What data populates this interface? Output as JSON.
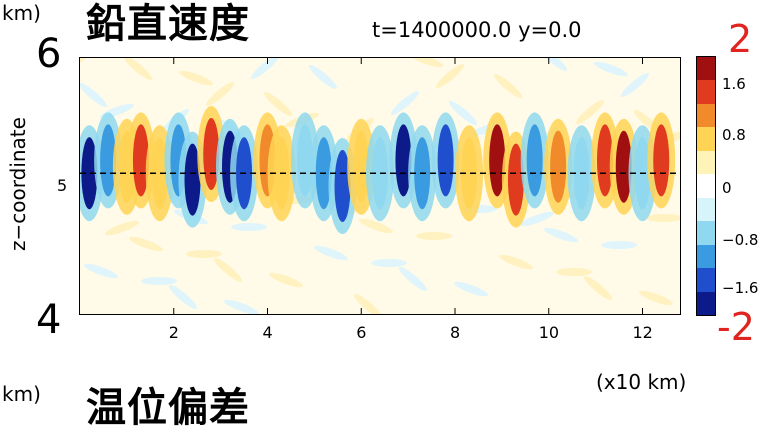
{
  "header": {
    "unit_top_left": "km)",
    "title": "鉛直速度",
    "info": "t=1400000.0  y=0.0"
  },
  "axes": {
    "y_top_big": "6",
    "y_bottom_big": "4",
    "y_mid": "5",
    "ylabel": "z−coordinate",
    "x_ticks": [
      "2",
      "4",
      "6",
      "8",
      "10",
      "12"
    ],
    "x_unit": "(x10 km)"
  },
  "colorbar": {
    "top_big": "2",
    "bottom_big": "-2",
    "labels": [
      "1.6",
      "0.8",
      "0",
      "−0.8",
      "−1.6"
    ],
    "colors": [
      "#a01010",
      "#e03a1f",
      "#f08a2a",
      "#ffd455",
      "#fff4b8",
      "#ffffff",
      "#d6f4fa",
      "#8fd8ef",
      "#3a9be0",
      "#1f4fcc",
      "#0c1a8a"
    ]
  },
  "bottom_panel": {
    "unit": "km)",
    "title": "温位偏差"
  },
  "chart_data": {
    "type": "heatmap",
    "title": "鉛直速度",
    "subtitle": "t=1400000.0  y=0.0",
    "xlabel": "(x10 km)",
    "ylabel": "z−coordinate",
    "xlim": [
      0,
      12.8
    ],
    "ylim": [
      4,
      6
    ],
    "x_ticks": [
      2,
      4,
      6,
      8,
      10,
      12
    ],
    "y_ticks": [
      4,
      5,
      6
    ],
    "colorbar_range": [
      -2,
      2
    ],
    "colorbar_ticks": [
      1.6,
      0.8,
      0,
      -0.8,
      -1.6
    ],
    "reference_line_z": 5.1,
    "cells": [
      {
        "x": 0.2,
        "z": 5.1,
        "v": -1.8
      },
      {
        "x": 0.6,
        "z": 5.2,
        "v": -1.2
      },
      {
        "x": 1.0,
        "z": 5.15,
        "v": 0.9
      },
      {
        "x": 1.3,
        "z": 5.2,
        "v": 1.6
      },
      {
        "x": 1.7,
        "z": 5.1,
        "v": 0.6
      },
      {
        "x": 2.1,
        "z": 5.2,
        "v": -1.2
      },
      {
        "x": 2.4,
        "z": 5.05,
        "v": -1.7
      },
      {
        "x": 2.8,
        "z": 5.25,
        "v": 1.3
      },
      {
        "x": 3.2,
        "z": 5.15,
        "v": -1.9
      },
      {
        "x": 3.5,
        "z": 5.1,
        "v": -1.4
      },
      {
        "x": 4.0,
        "z": 5.2,
        "v": 1.1
      },
      {
        "x": 4.3,
        "z": 5.1,
        "v": 0.7
      },
      {
        "x": 4.8,
        "z": 5.2,
        "v": -0.9
      },
      {
        "x": 5.2,
        "z": 5.1,
        "v": -1.1
      },
      {
        "x": 5.6,
        "z": 5.0,
        "v": -1.6
      },
      {
        "x": 6.0,
        "z": 5.15,
        "v": 0.8
      },
      {
        "x": 6.4,
        "z": 5.1,
        "v": -0.7
      },
      {
        "x": 6.9,
        "z": 5.2,
        "v": -1.9
      },
      {
        "x": 7.3,
        "z": 5.1,
        "v": -1.0
      },
      {
        "x": 7.8,
        "z": 5.2,
        "v": -1.3
      },
      {
        "x": 8.3,
        "z": 5.1,
        "v": 0.9
      },
      {
        "x": 8.9,
        "z": 5.2,
        "v": 1.9
      },
      {
        "x": 9.3,
        "z": 5.05,
        "v": 1.5
      },
      {
        "x": 9.7,
        "z": 5.2,
        "v": -1.1
      },
      {
        "x": 10.2,
        "z": 5.15,
        "v": 1.2
      },
      {
        "x": 10.7,
        "z": 5.1,
        "v": -0.8
      },
      {
        "x": 11.2,
        "z": 5.2,
        "v": 1.5
      },
      {
        "x": 11.6,
        "z": 5.15,
        "v": 1.9
      },
      {
        "x": 12.0,
        "z": 5.1,
        "v": -0.6
      },
      {
        "x": 12.4,
        "z": 5.2,
        "v": 1.4
      }
    ]
  }
}
